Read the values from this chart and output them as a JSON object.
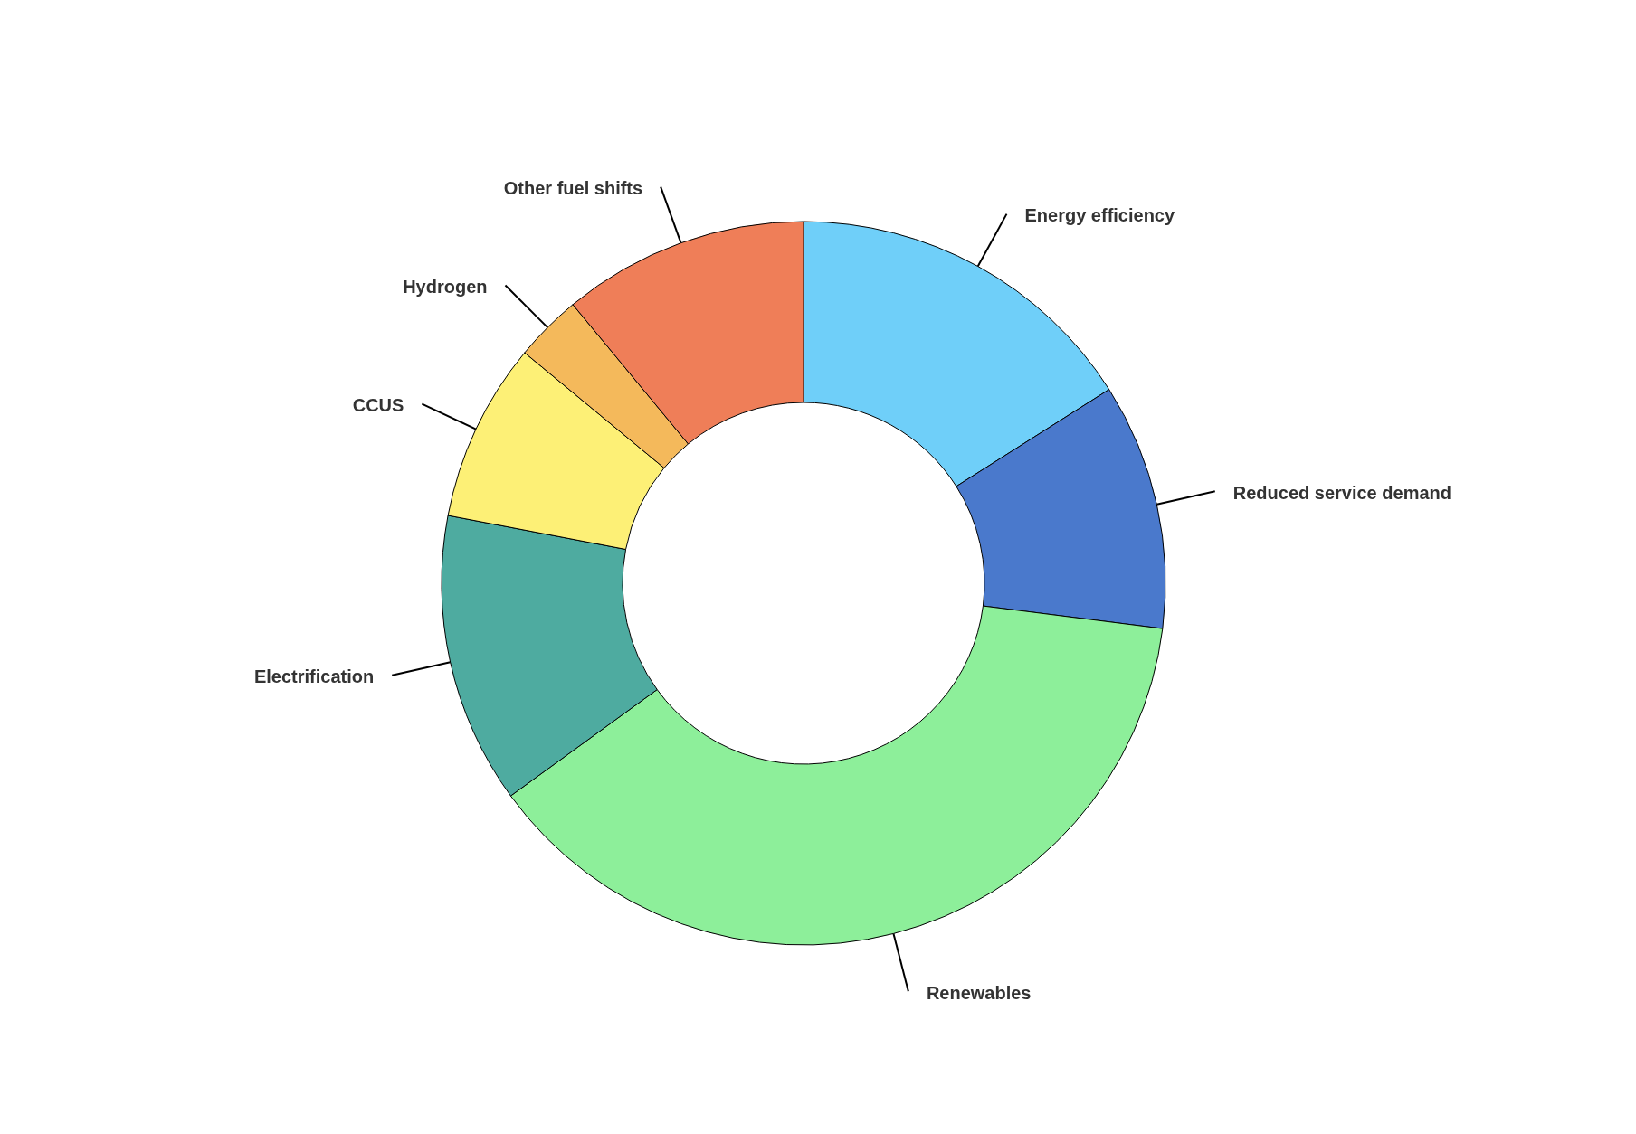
{
  "chart_data": {
    "type": "donut",
    "categories": [
      "Energy efficiency",
      "Reduced service demand",
      "Renewables",
      "Electrification",
      "CCUS",
      "Hydrogen",
      "Other fuel shifts"
    ],
    "values": [
      16,
      11,
      38,
      13,
      8,
      3,
      11
    ],
    "colors": [
      "#6fcff9",
      "#4a79cc",
      "#8def9a",
      "#4eaba0",
      "#fdf076",
      "#f4b95b",
      "#ef7e58"
    ]
  }
}
